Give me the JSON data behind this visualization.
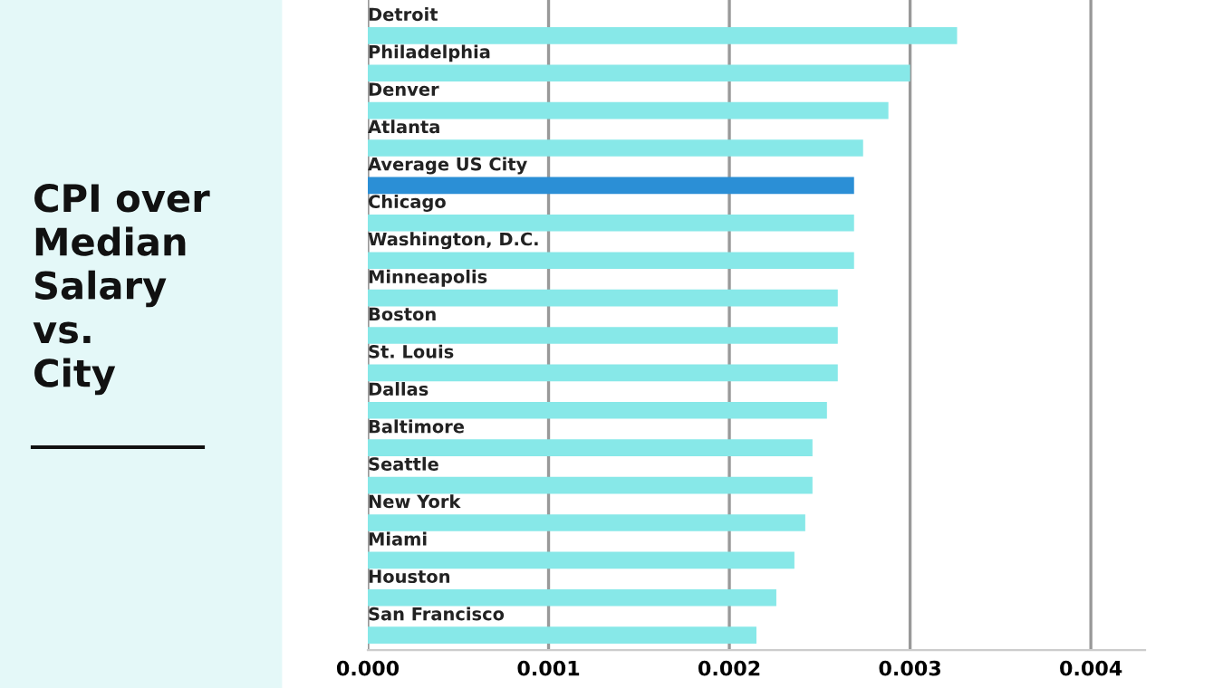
{
  "chart_data": {
    "type": "bar",
    "orientation": "horizontal",
    "title": "CPI over\nMedian\nSalary\nvs.\nCity",
    "categories": [
      "Detroit",
      "Philadelphia",
      "Denver",
      "Atlanta",
      "Average US City",
      "Chicago",
      "Washington, D.C.",
      "Minneapolis",
      "Boston",
      "St. Louis",
      "Dallas",
      "Baltimore",
      "Seattle",
      "New York",
      "Miami",
      "Houston",
      "San Francisco"
    ],
    "values": [
      0.00326,
      0.003,
      0.00288,
      0.00274,
      0.00269,
      0.00269,
      0.00269,
      0.0026,
      0.0026,
      0.0026,
      0.00254,
      0.00246,
      0.00246,
      0.00242,
      0.00236,
      0.00226,
      0.00215
    ],
    "colors": [
      "#87e8e8",
      "#87e8e8",
      "#87e8e8",
      "#87e8e8",
      "#2b8fd6",
      "#87e8e8",
      "#87e8e8",
      "#87e8e8",
      "#87e8e8",
      "#87e8e8",
      "#87e8e8",
      "#87e8e8",
      "#87e8e8",
      "#87e8e8",
      "#87e8e8",
      "#87e8e8",
      "#87e8e8"
    ],
    "xlim": [
      0,
      0.0043
    ],
    "xticks": [
      {
        "value": 0,
        "label": "0.000"
      },
      {
        "value": 0.001,
        "label": "0.001"
      },
      {
        "value": 0.002,
        "label": "0.002"
      },
      {
        "value": 0.003,
        "label": "0.003"
      },
      {
        "value": 0.004,
        "label": "0.004"
      }
    ],
    "grid": "x",
    "legend": false
  }
}
